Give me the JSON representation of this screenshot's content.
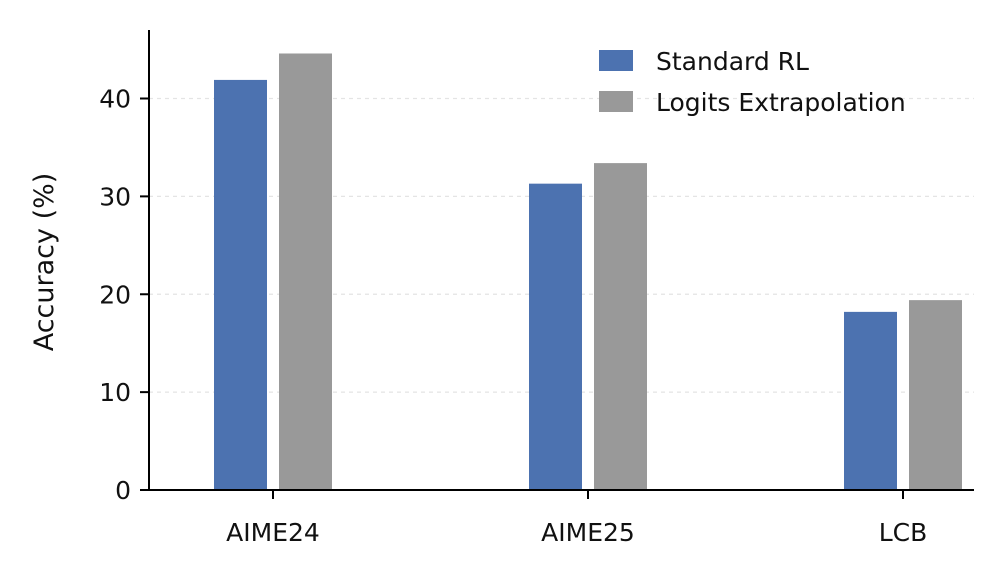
{
  "chart_data": {
    "type": "bar",
    "title": "",
    "xlabel": "",
    "ylabel": "Accuracy (%)",
    "categories": [
      "AIME24",
      "AIME25",
      "LCB"
    ],
    "series": [
      {
        "name": "Standard RL",
        "color": "#4c72b0",
        "values": [
          41.9,
          31.3,
          18.2
        ]
      },
      {
        "name": "Logits Extrapolation",
        "color": "#999999",
        "values": [
          44.6,
          33.4,
          19.4
        ]
      }
    ],
    "ylim": [
      0,
      47
    ],
    "yticks": [
      "0",
      "10",
      "20",
      "30",
      "40"
    ],
    "grid": "horizontal, dashed, light",
    "legend_position": "top-right"
  }
}
